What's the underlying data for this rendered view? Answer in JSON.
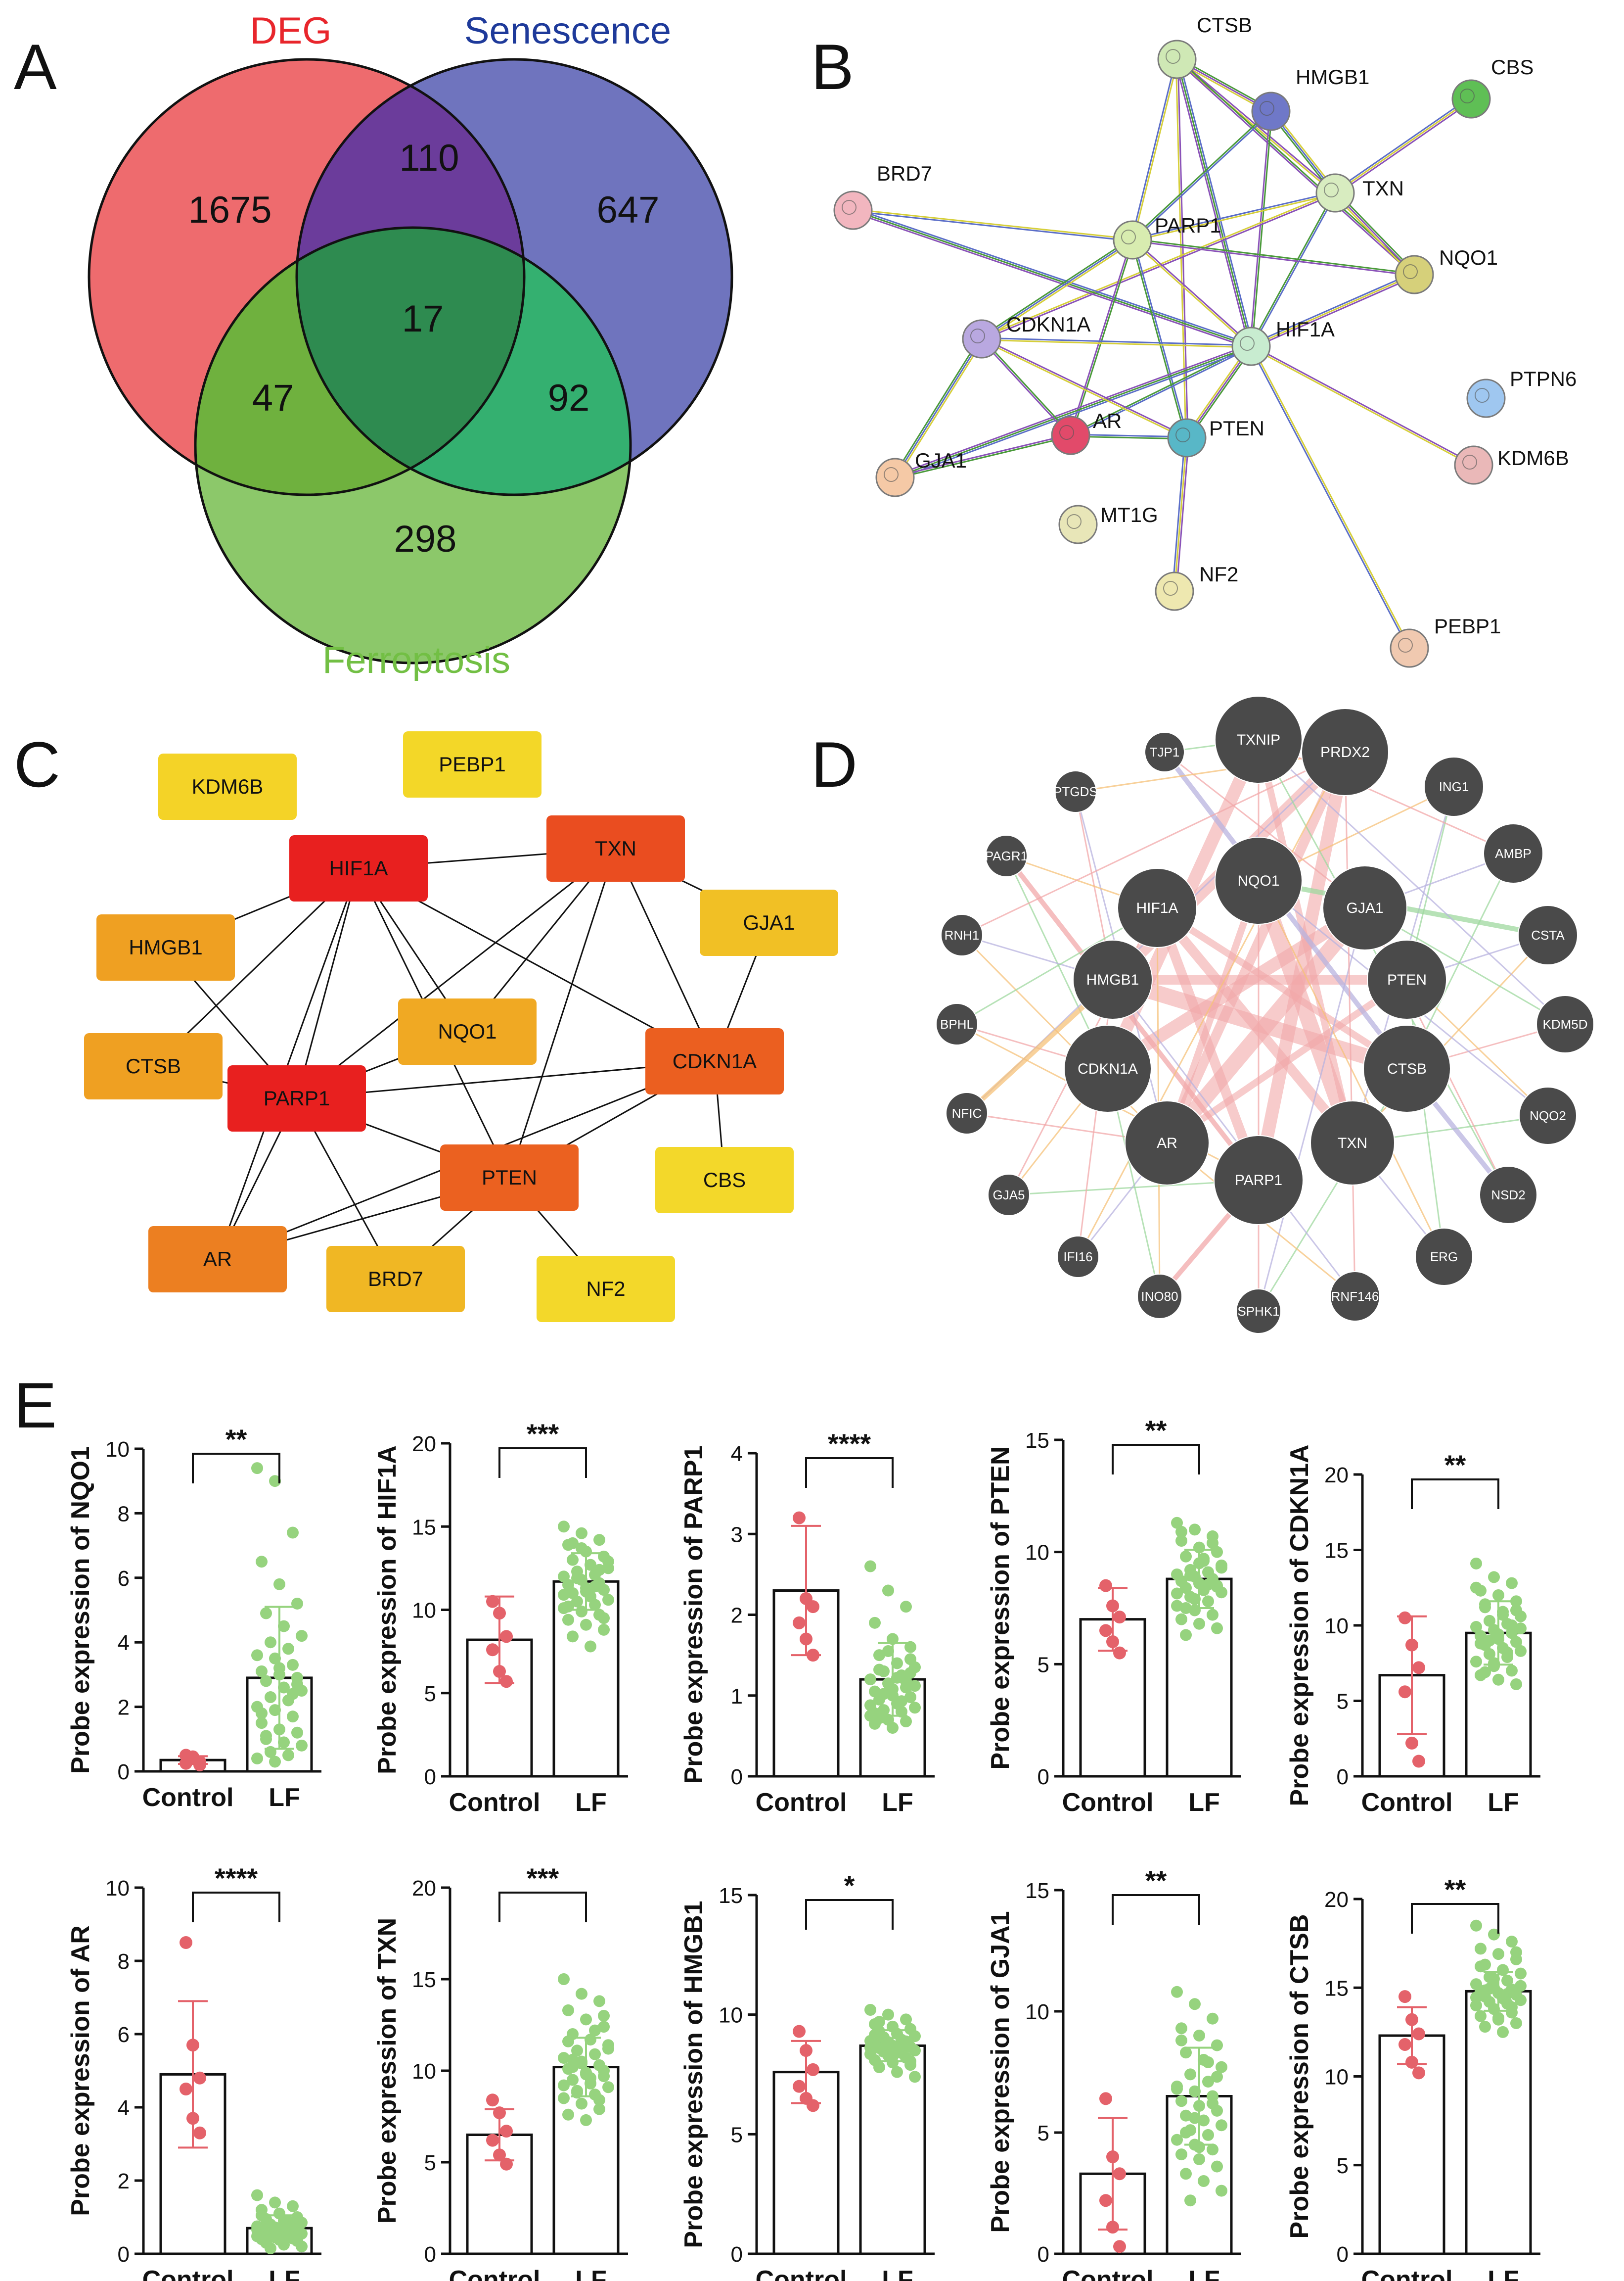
{
  "panels": {
    "a": "A",
    "b": "B",
    "c": "C",
    "d": "D",
    "e": "E"
  },
  "venn": {
    "set_labels": [
      "DEG",
      "Senescence",
      "Ferroptosis"
    ],
    "colors": {
      "deg": "#ee6b6e",
      "senescence": "#6f74be",
      "ferroptosis": "#8cc86a",
      "deg_label": "#e8262c",
      "senescence_label": "#1e3a9a",
      "ferroptosis_label": "#72bf44",
      "deg_sen": "#6b3c9b",
      "deg_fer": "#6fb13e",
      "sen_fer": "#34b070",
      "all": "#2e8b50"
    },
    "counts": {
      "deg_only": "1675",
      "sen_only": "647",
      "fer_only": "298",
      "deg_sen": "110",
      "deg_fer": "47",
      "sen_fer": "92",
      "all": "17"
    }
  },
  "string_net": {
    "nodes": [
      {
        "id": "CTSB",
        "label": "CTSB",
        "color": "#cfe8b5"
      },
      {
        "id": "HMGB1",
        "label": "HMGB1",
        "color": "#6f78c8"
      },
      {
        "id": "CBS",
        "label": "CBS",
        "color": "#5fbf55"
      },
      {
        "id": "TXN",
        "label": "TXN",
        "color": "#d8ecc0"
      },
      {
        "id": "BRD7",
        "label": "BRD7",
        "color": "#f2b6bf"
      },
      {
        "id": "PARP1",
        "label": "PARP1",
        "color": "#d8ecb0"
      },
      {
        "id": "NQO1",
        "label": "NQO1",
        "color": "#d6d07a"
      },
      {
        "id": "CDKN1A",
        "label": "CDKN1A",
        "color": "#b9a8e0"
      },
      {
        "id": "HIF1A",
        "label": "HIF1A",
        "color": "#c8ecd0"
      },
      {
        "id": "PTPN6",
        "label": "PTPN6",
        "color": "#9fc7f0"
      },
      {
        "id": "AR",
        "label": "AR",
        "color": "#e24a6a"
      },
      {
        "id": "PTEN",
        "label": "PTEN",
        "color": "#58b7c7"
      },
      {
        "id": "KDM6B",
        "label": "KDM6B",
        "color": "#eab8b8"
      },
      {
        "id": "GJA1",
        "label": "GJA1",
        "color": "#f5c9a6"
      },
      {
        "id": "MT1G",
        "label": "MT1G",
        "color": "#e8e6b8"
      },
      {
        "id": "NF2",
        "label": "NF2",
        "color": "#eee8b0"
      },
      {
        "id": "PEBP1",
        "label": "PEBP1",
        "color": "#f0c9b0"
      }
    ],
    "edges": [
      [
        "CTSB",
        "HMGB1"
      ],
      [
        "CTSB",
        "TXN"
      ],
      [
        "CTSB",
        "PARP1"
      ],
      [
        "CTSB",
        "HIF1A"
      ],
      [
        "CTSB",
        "NQO1"
      ],
      [
        "CTSB",
        "PTEN"
      ],
      [
        "HMGB1",
        "TXN"
      ],
      [
        "HMGB1",
        "PARP1"
      ],
      [
        "HMGB1",
        "HIF1A"
      ],
      [
        "CBS",
        "TXN"
      ],
      [
        "TXN",
        "PARP1"
      ],
      [
        "TXN",
        "HIF1A"
      ],
      [
        "TXN",
        "NQO1"
      ],
      [
        "TXN",
        "CDKN1A"
      ],
      [
        "BRD7",
        "PARP1"
      ],
      [
        "BRD7",
        "HIF1A"
      ],
      [
        "PARP1",
        "NQO1"
      ],
      [
        "PARP1",
        "HIF1A"
      ],
      [
        "PARP1",
        "CDKN1A"
      ],
      [
        "PARP1",
        "PTEN"
      ],
      [
        "PARP1",
        "AR"
      ],
      [
        "NQO1",
        "HIF1A"
      ],
      [
        "HIF1A",
        "CDKN1A"
      ],
      [
        "HIF1A",
        "AR"
      ],
      [
        "HIF1A",
        "PTEN"
      ],
      [
        "HIF1A",
        "KDM6B"
      ],
      [
        "HIF1A",
        "PEBP1"
      ],
      [
        "HIF1A",
        "GJA1"
      ],
      [
        "CDKN1A",
        "AR"
      ],
      [
        "CDKN1A",
        "PTEN"
      ],
      [
        "CDKN1A",
        "GJA1"
      ],
      [
        "AR",
        "PTEN"
      ],
      [
        "AR",
        "GJA1"
      ],
      [
        "PTEN",
        "NF2"
      ]
    ]
  },
  "hub_net": {
    "nodes": [
      {
        "id": "KDM6B",
        "label": "KDM6B",
        "color": "#f4d327"
      },
      {
        "id": "PEBP1",
        "label": "PEBP1",
        "color": "#f3d728"
      },
      {
        "id": "HIF1A",
        "label": "HIF1A",
        "color": "#e8201f"
      },
      {
        "id": "TXN",
        "label": "TXN",
        "color": "#ea4d20"
      },
      {
        "id": "GJA1",
        "label": "GJA1",
        "color": "#f1c025"
      },
      {
        "id": "HMGB1",
        "label": "HMGB1",
        "color": "#efa022"
      },
      {
        "id": "NQO1",
        "label": "NQO1",
        "color": "#f0a923"
      },
      {
        "id": "CDKN1A",
        "label": "CDKN1A",
        "color": "#eb5f20"
      },
      {
        "id": "CTSB",
        "label": "CTSB",
        "color": "#efa022"
      },
      {
        "id": "PARP1",
        "label": "PARP1",
        "color": "#e8201f"
      },
      {
        "id": "PTEN",
        "label": "PTEN",
        "color": "#eb6120"
      },
      {
        "id": "CBS",
        "label": "CBS",
        "color": "#f3d82a"
      },
      {
        "id": "AR",
        "label": "AR",
        "color": "#ec7f21"
      },
      {
        "id": "BRD7",
        "label": "BRD7",
        "color": "#f0b724"
      },
      {
        "id": "NF2",
        "label": "NF2",
        "color": "#f3d82a"
      }
    ],
    "edges": [
      [
        "HIF1A",
        "TXN"
      ],
      [
        "HIF1A",
        "HMGB1"
      ],
      [
        "HIF1A",
        "CTSB"
      ],
      [
        "HIF1A",
        "PARP1"
      ],
      [
        "HIF1A",
        "NQO1"
      ],
      [
        "HIF1A",
        "PTEN"
      ],
      [
        "HIF1A",
        "AR"
      ],
      [
        "HIF1A",
        "CDKN1A"
      ],
      [
        "TXN",
        "PARP1"
      ],
      [
        "TXN",
        "CDKN1A"
      ],
      [
        "TXN",
        "PTEN"
      ],
      [
        "TXN",
        "GJA1"
      ],
      [
        "TXN",
        "NQO1"
      ],
      [
        "HMGB1",
        "PARP1"
      ],
      [
        "CTSB",
        "PARP1"
      ],
      [
        "PARP1",
        "CDKN1A"
      ],
      [
        "PARP1",
        "AR"
      ],
      [
        "PARP1",
        "BRD7"
      ],
      [
        "PARP1",
        "PTEN"
      ],
      [
        "NQO1",
        "PARP1"
      ],
      [
        "CDKN1A",
        "PTEN"
      ],
      [
        "CDKN1A",
        "AR"
      ],
      [
        "CDKN1A",
        "CBS"
      ],
      [
        "CDKN1A",
        "GJA1"
      ],
      [
        "PTEN",
        "AR"
      ],
      [
        "PTEN",
        "NF2"
      ],
      [
        "PTEN",
        "BRD7"
      ]
    ]
  },
  "genemania": {
    "inner": [
      "TXNIP",
      "PRDX2",
      "NQO1",
      "HIF1A",
      "GJA1",
      "HMGB1",
      "PTEN",
      "CDKN1A",
      "CTSB",
      "AR",
      "TXN",
      "PARP1"
    ],
    "outer": [
      "TJP1",
      "PTGDS",
      "PAGR1",
      "RNH1",
      "BPHL",
      "NFIC",
      "GJA5",
      "IFI16",
      "INO80",
      "SPHK1",
      "RNF146",
      "ERG",
      "NSD2",
      "NQO2",
      "KDM5D",
      "CSTA",
      "AMBP",
      "ING1"
    ],
    "colors": {
      "node": "#4a4a4a",
      "edge_pink": "#f2a9aa",
      "edge_green": "#9fd9a0",
      "edge_orange": "#f6c27a",
      "edge_purple": "#b9b4e0"
    }
  },
  "chart_data": [
    {
      "type": "bar",
      "gene": "NQO1",
      "title": "",
      "ylabel": "Probe expression of NQO1",
      "categories": [
        "Control",
        "LF"
      ],
      "values": [
        0.35,
        2.9
      ],
      "errors": [
        0.12,
        2.2
      ],
      "ylim": [
        0,
        10
      ],
      "yticks": [
        "0",
        "2",
        "4",
        "6",
        "8",
        "10"
      ],
      "significance": "**",
      "control_points": [
        0.5,
        0.45,
        0.3,
        0.25,
        0.4,
        0.2
      ],
      "lf_points": [
        9.4,
        9.0,
        7.4,
        6.5,
        5.8,
        5.2,
        4.9,
        4.5,
        4.2,
        4.0,
        3.8,
        3.6,
        3.5,
        3.3,
        3.1,
        3.0,
        2.9,
        2.8,
        2.6,
        2.5,
        2.3,
        2.2,
        2.0,
        1.9,
        1.7,
        1.5,
        1.3,
        1.2,
        1.0,
        0.9,
        0.8,
        0.6,
        0.5,
        0.4,
        0.3,
        2.4,
        1.8,
        3.2,
        2.7,
        1.1
      ]
    },
    {
      "type": "bar",
      "gene": "HIF1A",
      "title": "",
      "ylabel": "Probe expression of HIF1A",
      "categories": [
        "Control",
        "LF"
      ],
      "values": [
        8.2,
        11.7
      ],
      "errors": [
        2.6,
        1.7
      ],
      "ylim": [
        0,
        20
      ],
      "yticks": [
        "0",
        "5",
        "10",
        "15",
        "20"
      ],
      "significance": "***",
      "control_points": [
        10.5,
        9.8,
        8.4,
        7.6,
        6.3,
        5.7
      ],
      "lf_points": [
        15.0,
        14.6,
        14.2,
        13.9,
        13.5,
        13.2,
        13.0,
        12.7,
        12.5,
        12.3,
        12.1,
        12.0,
        11.8,
        11.6,
        11.5,
        11.3,
        11.2,
        11.0,
        10.8,
        10.6,
        10.5,
        10.3,
        10.1,
        9.9,
        9.7,
        9.4,
        9.1,
        8.8,
        8.4,
        7.8,
        12.9,
        11.9,
        11.4,
        10.9,
        13.7,
        12.4,
        10.2,
        11.1,
        9.5,
        14.0
      ]
    },
    {
      "type": "bar",
      "gene": "PARP1",
      "title": "",
      "ylabel": "Probe expression of PARP1",
      "categories": [
        "Control",
        "LF"
      ],
      "values": [
        2.3,
        1.2
      ],
      "errors": [
        0.8,
        0.45
      ],
      "ylim": [
        0,
        4
      ],
      "yticks": [
        "0",
        "1",
        "2",
        "3",
        "4"
      ],
      "significance": "****",
      "control_points": [
        3.2,
        2.2,
        2.1,
        1.9,
        1.7,
        1.5
      ],
      "lf_points": [
        2.6,
        2.3,
        2.1,
        1.9,
        1.7,
        1.6,
        1.5,
        1.4,
        1.35,
        1.3,
        1.25,
        1.2,
        1.15,
        1.1,
        1.05,
        1.0,
        0.98,
        0.95,
        0.9,
        0.85,
        0.82,
        0.8,
        0.75,
        0.7,
        0.68,
        0.65,
        0.6,
        1.45,
        1.32,
        1.22,
        1.12,
        1.02,
        0.93,
        0.88,
        1.55,
        1.18,
        0.78,
        1.08,
        1.28,
        0.72
      ]
    },
    {
      "type": "bar",
      "gene": "PTEN",
      "title": "",
      "ylabel": "Probe expression of PTEN",
      "categories": [
        "Control",
        "LF"
      ],
      "values": [
        7.0,
        8.8
      ],
      "errors": [
        1.4,
        1.3
      ],
      "ylim": [
        0,
        15
      ],
      "yticks": [
        "0",
        "5",
        "10",
        "15"
      ],
      "significance": "**",
      "control_points": [
        8.5,
        7.6,
        7.1,
        6.5,
        6.0,
        5.5
      ],
      "lf_points": [
        11.3,
        11.0,
        10.7,
        10.5,
        10.2,
        10.0,
        9.8,
        9.6,
        9.4,
        9.2,
        9.1,
        9.0,
        8.9,
        8.8,
        8.7,
        8.6,
        8.5,
        8.4,
        8.3,
        8.2,
        8.0,
        7.8,
        7.6,
        7.4,
        7.2,
        7.0,
        6.8,
        6.6,
        6.3,
        9.7,
        9.3,
        8.95,
        8.55,
        8.15,
        7.9,
        10.4,
        10.9,
        9.5,
        8.45,
        7.5
      ]
    },
    {
      "type": "bar",
      "gene": "CDKN1A",
      "title": "",
      "ylabel": "Probe expression of CDKN1A",
      "categories": [
        "Control",
        "LF"
      ],
      "values": [
        6.7,
        9.5
      ],
      "errors": [
        3.9,
        2.1
      ],
      "ylim": [
        0,
        20
      ],
      "yticks": [
        "0",
        "5",
        "10",
        "15",
        "20"
      ],
      "significance": "**",
      "control_points": [
        10.5,
        8.7,
        7.2,
        5.6,
        2.2,
        1.0
      ],
      "lf_points": [
        14.1,
        13.2,
        12.8,
        12.3,
        12.0,
        11.6,
        11.2,
        10.9,
        10.6,
        10.3,
        10.1,
        9.9,
        9.7,
        9.5,
        9.3,
        9.1,
        8.9,
        8.7,
        8.5,
        8.3,
        8.1,
        7.9,
        7.6,
        7.3,
        7.0,
        6.7,
        6.4,
        6.1,
        11.4,
        10.7,
        9.8,
        9.0,
        8.2,
        12.5,
        7.5,
        10.0,
        8.8,
        9.4,
        11.0,
        6.9
      ]
    },
    {
      "type": "bar",
      "gene": "AR",
      "title": "",
      "ylabel": "Probe expression of AR",
      "categories": [
        "Control",
        "LF"
      ],
      "values": [
        4.9,
        0.7
      ],
      "errors": [
        2.0,
        0.35
      ],
      "ylim": [
        0,
        10
      ],
      "yticks": [
        "0",
        "2",
        "4",
        "6",
        "8",
        "10"
      ],
      "significance": "****",
      "control_points": [
        8.5,
        5.7,
        4.8,
        4.5,
        3.7,
        3.3
      ],
      "lf_points": [
        1.6,
        1.4,
        1.3,
        1.2,
        1.1,
        1.0,
        0.95,
        0.9,
        0.85,
        0.8,
        0.78,
        0.75,
        0.72,
        0.7,
        0.68,
        0.65,
        0.62,
        0.6,
        0.58,
        0.55,
        0.52,
        0.5,
        0.48,
        0.45,
        0.42,
        0.4,
        0.38,
        0.35,
        0.3,
        0.25,
        0.2,
        0.15,
        0.88,
        0.66,
        0.56,
        0.74,
        1.05,
        0.46,
        0.36,
        0.82
      ]
    },
    {
      "type": "bar",
      "gene": "TXN",
      "title": "",
      "ylabel": "Probe expression of TXN",
      "categories": [
        "Control",
        "LF"
      ],
      "values": [
        6.5,
        10.2
      ],
      "errors": [
        1.4,
        1.6
      ],
      "ylim": [
        0,
        20
      ],
      "yticks": [
        "0",
        "5",
        "10",
        "15",
        "20"
      ],
      "significance": "***",
      "control_points": [
        8.4,
        7.7,
        6.7,
        6.2,
        5.4,
        4.9
      ],
      "lf_points": [
        15.0,
        14.2,
        13.8,
        13.3,
        12.8,
        12.4,
        12.0,
        11.7,
        11.4,
        11.1,
        10.9,
        10.7,
        10.5,
        10.3,
        10.1,
        9.9,
        9.7,
        9.5,
        9.3,
        9.1,
        8.9,
        8.7,
        8.5,
        8.2,
        7.9,
        7.6,
        7.3,
        10.0,
        10.6,
        9.6,
        11.2,
        8.8,
        12.2,
        9.2,
        10.4,
        8.4,
        11.6,
        9.8,
        13.0,
        10.2
      ]
    },
    {
      "type": "bar",
      "gene": "HMGB1",
      "title": "",
      "ylabel": "Probe expression of HMGB1",
      "categories": [
        "Control",
        "LF"
      ],
      "values": [
        7.6,
        8.7
      ],
      "errors": [
        1.3,
        0.65
      ],
      "ylim": [
        0,
        15
      ],
      "yticks": [
        "0",
        "5",
        "10",
        "15"
      ],
      "significance": "*",
      "control_points": [
        9.3,
        8.5,
        7.7,
        7.0,
        6.5,
        6.2
      ],
      "lf_points": [
        10.2,
        10.0,
        9.8,
        9.6,
        9.5,
        9.4,
        9.3,
        9.2,
        9.1,
        9.0,
        8.95,
        8.9,
        8.85,
        8.8,
        8.75,
        8.7,
        8.65,
        8.6,
        8.55,
        8.5,
        8.45,
        8.4,
        8.35,
        8.3,
        8.2,
        8.1,
        8.0,
        7.9,
        7.8,
        7.6,
        7.4,
        9.05,
        8.78,
        8.62,
        8.48,
        8.88,
        9.15,
        8.25,
        8.05,
        9.7
      ]
    },
    {
      "type": "bar",
      "gene": "GJA1",
      "title": "",
      "ylabel": "Probe expression of GJA1",
      "categories": [
        "Control",
        "LF"
      ],
      "values": [
        3.3,
        6.5
      ],
      "errors": [
        2.3,
        2.0
      ],
      "ylim": [
        0,
        15
      ],
      "yticks": [
        "0",
        "5",
        "10",
        "15"
      ],
      "significance": "**",
      "control_points": [
        6.4,
        4.0,
        3.3,
        2.2,
        1.1,
        0.3
      ],
      "lf_points": [
        10.8,
        10.3,
        9.7,
        9.3,
        9.0,
        8.6,
        8.3,
        8.0,
        7.7,
        7.4,
        7.1,
        6.9,
        6.7,
        6.5,
        6.3,
        6.1,
        5.9,
        5.7,
        5.5,
        5.3,
        5.1,
        4.9,
        4.7,
        4.5,
        4.3,
        4.1,
        3.9,
        3.6,
        3.3,
        3.0,
        2.6,
        2.2,
        7.9,
        6.8,
        5.6,
        6.2,
        8.8,
        4.4,
        7.3,
        5.0
      ]
    },
    {
      "type": "bar",
      "gene": "CTSB",
      "title": "",
      "ylabel": "Probe expression of CTSB",
      "categories": [
        "Control",
        "LF"
      ],
      "values": [
        12.3,
        14.8
      ],
      "errors": [
        1.6,
        1.1
      ],
      "ylim": [
        0,
        20
      ],
      "yticks": [
        "0",
        "5",
        "10",
        "15",
        "20"
      ],
      "significance": "**",
      "control_points": [
        14.5,
        13.2,
        12.4,
        11.8,
        10.8,
        10.2
      ],
      "lf_points": [
        18.5,
        18.0,
        17.6,
        17.2,
        16.9,
        16.6,
        16.3,
        16.0,
        15.8,
        15.6,
        15.4,
        15.2,
        15.0,
        14.9,
        14.8,
        14.7,
        14.6,
        14.5,
        14.4,
        14.3,
        14.2,
        14.1,
        14.0,
        13.8,
        13.6,
        13.4,
        13.2,
        13.0,
        12.8,
        12.5,
        15.1,
        14.95,
        14.65,
        14.45,
        15.5,
        13.9,
        16.2,
        13.3,
        17.0,
        14.85
      ]
    }
  ]
}
